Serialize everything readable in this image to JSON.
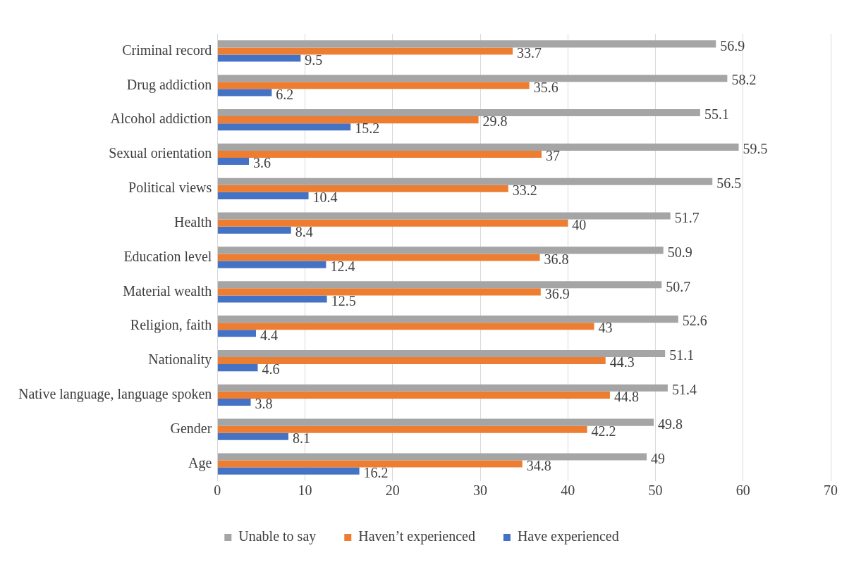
{
  "chart_data": {
    "type": "bar",
    "orientation": "horizontal",
    "categories": [
      "Criminal record",
      "Drug addiction",
      "Alcohol addiction",
      "Sexual orientation",
      "Political views",
      "Health",
      "Education level",
      "Material wealth",
      "Religion, faith",
      "Nationality",
      "Native language, language spoken",
      "Gender",
      "Age"
    ],
    "series": [
      {
        "name": "Unable to say",
        "color": "#a5a5a5",
        "values": [
          56.9,
          58.2,
          55.1,
          59.5,
          56.5,
          51.7,
          50.9,
          50.7,
          52.6,
          51.1,
          51.4,
          49.8,
          49
        ]
      },
      {
        "name": "Haven’t experienced",
        "color": "#ed7d31",
        "values": [
          33.7,
          35.6,
          29.8,
          37,
          33.2,
          40,
          36.8,
          36.9,
          43,
          44.3,
          44.8,
          42.2,
          34.8
        ]
      },
      {
        "name": "Have experienced",
        "color": "#4472c4",
        "values": [
          9.5,
          6.2,
          15.2,
          3.6,
          10.4,
          8.4,
          12.4,
          12.5,
          4.4,
          4.6,
          3.8,
          8.1,
          16.2
        ]
      }
    ],
    "xlim": [
      0,
      70
    ],
    "xticks": [
      0,
      10,
      20,
      30,
      40,
      50,
      60,
      70
    ],
    "grid": "x",
    "legend": "bottom",
    "data_labels": true
  }
}
